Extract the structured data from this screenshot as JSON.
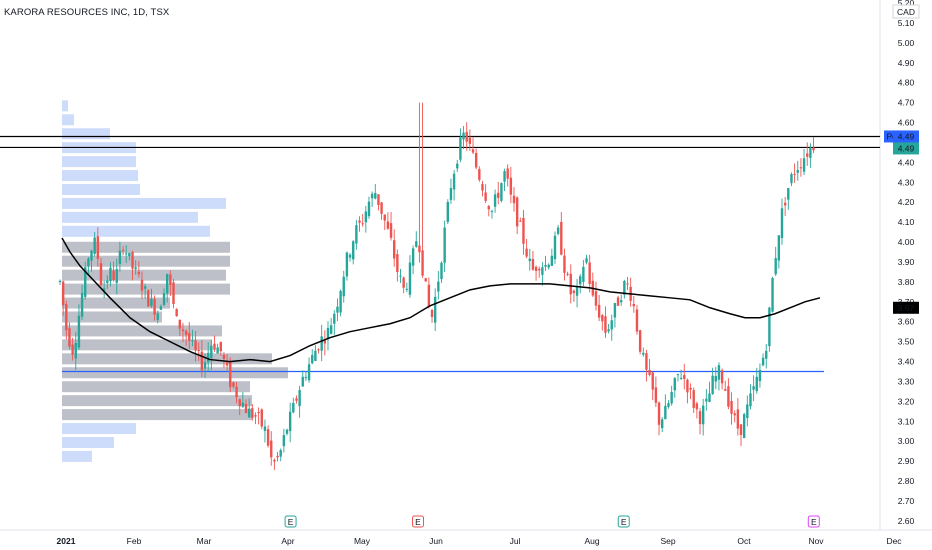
{
  "symbol_title": "KARORA RESOURCES INC, 1D, TSX",
  "currency": "CAD",
  "colors": {
    "up": "#26a69a",
    "down": "#ef5350",
    "ma": "#000000",
    "support": "#2962ff",
    "vp_upper": "#c9d8fb",
    "vp_value_area": "#b2b5be",
    "earnings": "#26a69a",
    "earnings_red": "#ef5350",
    "dividend": "#e040fb",
    "post_label_bg": "#2962ff"
  },
  "labels": {
    "post": "Post",
    "last_price": "4.49",
    "post_price": "4.49",
    "ma_value": "3.67"
  },
  "chart_data": {
    "type": "candlestick",
    "title": "KARORA RESOURCES INC, 1D, TSX",
    "y_ticks": [
      "5.20",
      "5.10",
      "5.00",
      "4.90",
      "4.80",
      "4.70",
      "4.60",
      "4.50",
      "4.40",
      "4.30",
      "4.20",
      "4.10",
      "4.00",
      "3.90",
      "3.80",
      "3.70",
      "3.60",
      "3.50",
      "3.40",
      "3.30",
      "3.20",
      "3.10",
      "3.00",
      "2.90",
      "2.80",
      "2.70",
      "2.60"
    ],
    "x_ticks": [
      "2021",
      "Feb",
      "Mar",
      "Apr",
      "May",
      "Jun",
      "Jul",
      "Aug",
      "Sep",
      "Oct",
      "Nov",
      "Dec"
    ],
    "ylim": [
      2.55,
      5.24
    ],
    "last_price": 4.49,
    "moving_average_last": 3.67,
    "horizontal_lines": [
      4.53,
      4.485,
      3.35
    ],
    "price_path": [
      [
        0,
        3.8
      ],
      [
        3,
        3.55
      ],
      [
        6,
        3.45
      ],
      [
        10,
        3.75
      ],
      [
        13,
        3.95
      ],
      [
        16,
        4.0
      ],
      [
        19,
        3.75
      ],
      [
        22,
        3.85
      ],
      [
        25,
        3.82
      ],
      [
        28,
        4.0
      ],
      [
        32,
        3.88
      ],
      [
        36,
        3.8
      ],
      [
        40,
        3.7
      ],
      [
        44,
        3.65
      ],
      [
        48,
        3.85
      ],
      [
        52,
        3.6
      ],
      [
        56,
        3.55
      ],
      [
        60,
        3.45
      ],
      [
        64,
        3.38
      ],
      [
        68,
        3.5
      ],
      [
        72,
        3.45
      ],
      [
        76,
        3.3
      ],
      [
        80,
        3.22
      ],
      [
        84,
        3.15
      ],
      [
        88,
        3.12
      ],
      [
        92,
        3.05
      ],
      [
        95,
        2.88
      ],
      [
        98,
        2.92
      ],
      [
        101,
        3.05
      ],
      [
        104,
        3.15
      ],
      [
        108,
        3.3
      ],
      [
        112,
        3.4
      ],
      [
        116,
        3.5
      ],
      [
        120,
        3.55
      ],
      [
        124,
        3.7
      ],
      [
        128,
        3.9
      ],
      [
        132,
        4.05
      ],
      [
        135,
        4.1
      ],
      [
        138,
        4.2
      ],
      [
        141,
        4.25
      ],
      [
        144,
        4.15
      ],
      [
        148,
        4.0
      ],
      [
        151,
        3.85
      ],
      [
        154,
        3.75
      ],
      [
        157,
        3.88
      ],
      [
        160,
        4.05
      ],
      [
        163,
        3.8
      ],
      [
        166,
        3.6
      ],
      [
        169,
        3.8
      ],
      [
        172,
        4.05
      ],
      [
        175,
        4.3
      ],
      [
        178,
        4.45
      ],
      [
        181,
        4.55
      ],
      [
        184,
        4.45
      ],
      [
        187,
        4.35
      ],
      [
        190,
        4.25
      ],
      [
        193,
        4.15
      ],
      [
        196,
        4.25
      ],
      [
        199,
        4.35
      ],
      [
        202,
        4.2
      ],
      [
        205,
        4.1
      ],
      [
        208,
        3.98
      ],
      [
        211,
        3.85
      ],
      [
        214,
        3.9
      ],
      [
        217,
        3.88
      ],
      [
        220,
        3.95
      ],
      [
        223,
        4.05
      ],
      [
        226,
        3.85
      ],
      [
        229,
        3.72
      ],
      [
        232,
        3.75
      ],
      [
        235,
        3.95
      ],
      [
        238,
        3.72
      ],
      [
        241,
        3.65
      ],
      [
        244,
        3.55
      ],
      [
        247,
        3.62
      ],
      [
        250,
        3.72
      ],
      [
        253,
        3.8
      ],
      [
        256,
        3.72
      ],
      [
        259,
        3.5
      ],
      [
        262,
        3.35
      ],
      [
        265,
        3.25
      ],
      [
        268,
        3.1
      ],
      [
        271,
        3.15
      ],
      [
        274,
        3.25
      ],
      [
        277,
        3.35
      ],
      [
        280,
        3.3
      ],
      [
        283,
        3.2
      ],
      [
        286,
        3.12
      ],
      [
        289,
        3.18
      ],
      [
        292,
        3.3
      ],
      [
        295,
        3.35
      ],
      [
        298,
        3.25
      ],
      [
        301,
        3.12
      ],
      [
        304,
        3.05
      ],
      [
        307,
        3.15
      ],
      [
        310,
        3.25
      ],
      [
        313,
        3.35
      ],
      [
        316,
        3.5
      ],
      [
        319,
        3.85
      ],
      [
        322,
        4.1
      ],
      [
        325,
        4.25
      ],
      [
        328,
        4.35
      ],
      [
        331,
        4.4
      ],
      [
        334,
        4.45
      ],
      [
        337,
        4.49
      ]
    ],
    "volume_profile": {
      "rows": [
        {
          "price": 4.68,
          "width": 6,
          "type": "upper"
        },
        {
          "price": 4.61,
          "width": 12,
          "type": "upper"
        },
        {
          "price": 4.54,
          "width": 48,
          "type": "upper"
        },
        {
          "price": 4.47,
          "width": 74,
          "type": "upper"
        },
        {
          "price": 4.4,
          "width": 74,
          "type": "upper"
        },
        {
          "price": 4.33,
          "width": 76,
          "type": "upper"
        },
        {
          "price": 4.26,
          "width": 78,
          "type": "upper"
        },
        {
          "price": 4.19,
          "width": 164,
          "type": "upper"
        },
        {
          "price": 4.12,
          "width": 136,
          "type": "upper"
        },
        {
          "price": 4.05,
          "width": 148,
          "type": "upper"
        },
        {
          "price": 3.97,
          "width": 168,
          "type": "value"
        },
        {
          "price": 3.9,
          "width": 168,
          "type": "value"
        },
        {
          "price": 3.83,
          "width": 164,
          "type": "value"
        },
        {
          "price": 3.76,
          "width": 168,
          "type": "value"
        },
        {
          "price": 3.69,
          "width": 108,
          "type": "value"
        },
        {
          "price": 3.62,
          "width": 100,
          "type": "value"
        },
        {
          "price": 3.55,
          "width": 160,
          "type": "value"
        },
        {
          "price": 3.48,
          "width": 150,
          "type": "value"
        },
        {
          "price": 3.41,
          "width": 210,
          "type": "value"
        },
        {
          "price": 3.34,
          "width": 226,
          "type": "value"
        },
        {
          "price": 3.27,
          "width": 188,
          "type": "value"
        },
        {
          "price": 3.2,
          "width": 190,
          "type": "value"
        },
        {
          "price": 3.13,
          "width": 190,
          "type": "value"
        },
        {
          "price": 3.06,
          "width": 74,
          "type": "upper"
        },
        {
          "price": 2.99,
          "width": 52,
          "type": "upper"
        },
        {
          "price": 2.92,
          "width": 30,
          "type": "upper"
        }
      ]
    },
    "event_markers": [
      {
        "label": "E",
        "x_idx": 102,
        "kind": "earnings"
      },
      {
        "label": "E",
        "x_idx": 159,
        "kind": "earnings_red"
      },
      {
        "label": "E",
        "x_idx": 251,
        "kind": "earnings"
      },
      {
        "label": "E",
        "x_idx": 336,
        "kind": "dividend"
      }
    ]
  }
}
